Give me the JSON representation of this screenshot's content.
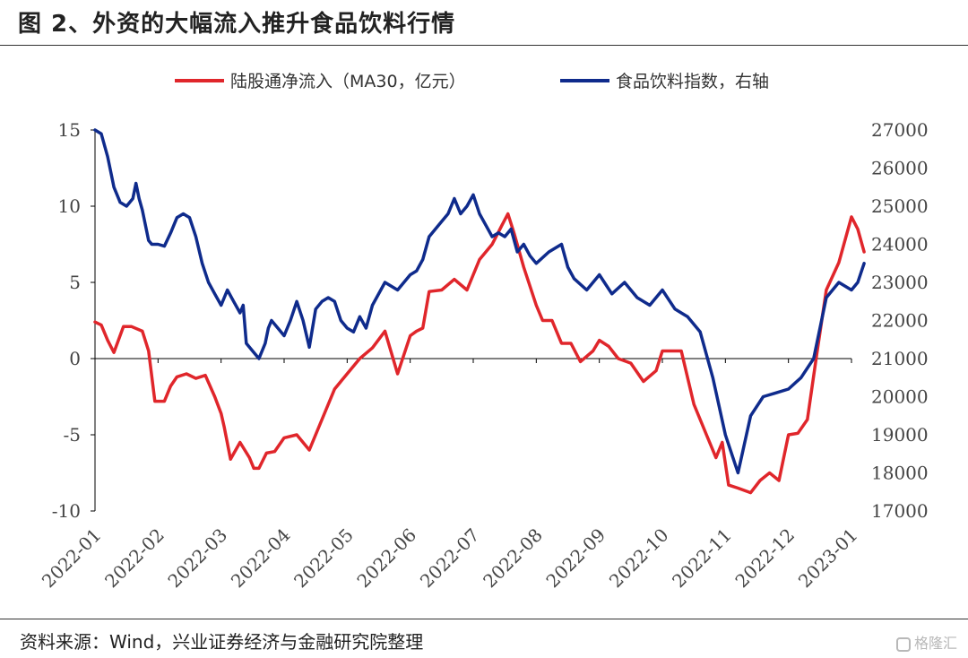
{
  "figure": {
    "title": "图 2、外资的大幅流入推升食品饮料行情",
    "source": "资料来源：Wind，兴业证券经济与金融研究院整理",
    "watermark": "格隆汇"
  },
  "colors": {
    "flow": "#e0262b",
    "index": "#0f2b8c",
    "axis": "#000000"
  },
  "chart_data": {
    "type": "line",
    "title": "",
    "xlabel": "",
    "ylabel_left": "",
    "ylabel_right": "",
    "legend_position": "top-center",
    "grid": false,
    "x_ticks": [
      "2022-01",
      "2022-02",
      "2022-03",
      "2022-04",
      "2022-05",
      "2022-06",
      "2022-07",
      "2022-08",
      "2022-09",
      "2022-10",
      "2022-11",
      "2022-12",
      "2023-01"
    ],
    "y_left": {
      "range": [
        -10,
        15
      ],
      "ticks": [
        "15",
        "10",
        "5",
        "0",
        "-5",
        "-10"
      ]
    },
    "y_right": {
      "range": [
        17000,
        27000
      ],
      "ticks": [
        "27000",
        "26000",
        "25000",
        "24000",
        "23000",
        "22000",
        "21000",
        "20000",
        "19000",
        "18000",
        "17000"
      ]
    },
    "series": [
      {
        "name": "陆股通净流入（MA30，亿元）",
        "axis": "left",
        "x": [
          0.0,
          0.1,
          0.2,
          0.3,
          0.45,
          0.58,
          0.75,
          0.85,
          0.95,
          1.0,
          1.1,
          1.2,
          1.3,
          1.45,
          1.6,
          1.75,
          1.9,
          2.0,
          2.05,
          2.15,
          2.3,
          2.45,
          2.52,
          2.6,
          2.72,
          2.85,
          3.0,
          3.2,
          3.4,
          3.6,
          3.8,
          4.0,
          4.2,
          4.4,
          4.6,
          4.8,
          5.0,
          5.1,
          5.2,
          5.3,
          5.5,
          5.7,
          5.9,
          6.1,
          6.3,
          6.45,
          6.55,
          6.65,
          6.8,
          7.0,
          7.1,
          7.25,
          7.4,
          7.55,
          7.7,
          7.9,
          8.0,
          8.15,
          8.3,
          8.5,
          8.7,
          8.9,
          9.0,
          9.3,
          9.5,
          9.7,
          9.85,
          9.95,
          10.05,
          10.2,
          10.4,
          10.55,
          10.7,
          10.85,
          11.0,
          11.15,
          11.3,
          11.45,
          11.6,
          11.8,
          12.0,
          12.1,
          12.2
        ],
        "y": [
          2.4,
          2.2,
          1.2,
          0.4,
          2.1,
          2.1,
          1.8,
          0.5,
          -2.8,
          -2.8,
          -2.8,
          -1.8,
          -1.2,
          -1.0,
          -1.3,
          -1.1,
          -2.5,
          -3.6,
          -4.5,
          -6.6,
          -5.5,
          -6.5,
          -7.2,
          -7.2,
          -6.2,
          -6.1,
          -5.2,
          -5.0,
          -6.0,
          -4.0,
          -2.0,
          -1.0,
          0.0,
          0.7,
          1.8,
          -1.0,
          1.5,
          1.8,
          2.0,
          4.4,
          4.5,
          5.2,
          4.5,
          6.5,
          7.5,
          8.7,
          9.5,
          8.2,
          6.0,
          3.5,
          2.5,
          2.5,
          1.0,
          1.0,
          -0.2,
          0.5,
          1.2,
          0.8,
          0.0,
          -0.3,
          -1.5,
          -0.8,
          0.5,
          0.5,
          -3.0,
          -5.0,
          -6.5,
          -5.5,
          -8.3,
          -8.5,
          -8.8,
          -8.0,
          -7.5,
          -8.0,
          -5.0,
          -4.9,
          -4.0,
          0.3,
          4.5,
          6.3,
          9.3,
          8.5,
          7.0
        ]
      },
      {
        "name": "食品饮料指数，右轴",
        "axis": "right",
        "x": [
          0.0,
          0.1,
          0.2,
          0.3,
          0.4,
          0.5,
          0.6,
          0.65,
          0.7,
          0.75,
          0.85,
          0.9,
          1.0,
          1.1,
          1.2,
          1.3,
          1.4,
          1.5,
          1.6,
          1.7,
          1.8,
          1.9,
          2.0,
          2.05,
          2.1,
          2.2,
          2.3,
          2.35,
          2.4,
          2.5,
          2.6,
          2.7,
          2.75,
          2.8,
          2.9,
          3.0,
          3.1,
          3.2,
          3.3,
          3.4,
          3.5,
          3.6,
          3.7,
          3.8,
          3.9,
          4.0,
          4.1,
          4.2,
          4.3,
          4.4,
          4.6,
          4.8,
          5.0,
          5.1,
          5.2,
          5.3,
          5.5,
          5.6,
          5.7,
          5.8,
          5.9,
          6.0,
          6.1,
          6.2,
          6.3,
          6.4,
          6.5,
          6.6,
          6.7,
          6.8,
          6.9,
          7.0,
          7.2,
          7.4,
          7.5,
          7.6,
          7.8,
          8.0,
          8.2,
          8.4,
          8.6,
          8.8,
          9.0,
          9.2,
          9.4,
          9.6,
          9.8,
          10.0,
          10.2,
          10.4,
          10.6,
          10.8,
          11.0,
          11.2,
          11.4,
          11.6,
          11.8,
          12.0,
          12.1,
          12.2
        ],
        "y": [
          27000,
          26900,
          26300,
          25500,
          25100,
          25000,
          25200,
          25600,
          25200,
          24900,
          24100,
          24000,
          24000,
          23950,
          24300,
          24700,
          24800,
          24700,
          24200,
          23500,
          23000,
          22700,
          22400,
          22600,
          22800,
          22500,
          22200,
          22400,
          21400,
          21200,
          21000,
          21400,
          21800,
          22000,
          21800,
          21600,
          22000,
          22500,
          22000,
          21300,
          22300,
          22500,
          22600,
          22500,
          22000,
          21800,
          21700,
          22100,
          21800,
          22400,
          23000,
          22800,
          23200,
          23300,
          23600,
          24200,
          24600,
          24800,
          25200,
          24800,
          25000,
          25300,
          24800,
          24500,
          24200,
          24300,
          24200,
          24400,
          23800,
          24000,
          23700,
          23500,
          23800,
          24000,
          23400,
          23100,
          22800,
          23200,
          22700,
          23000,
          22600,
          22400,
          22800,
          22300,
          22100,
          21700,
          20500,
          19000,
          18000,
          19500,
          20000,
          20100,
          20200,
          20500,
          21000,
          22600,
          23000,
          22800,
          23000,
          23500
        ]
      }
    ]
  }
}
